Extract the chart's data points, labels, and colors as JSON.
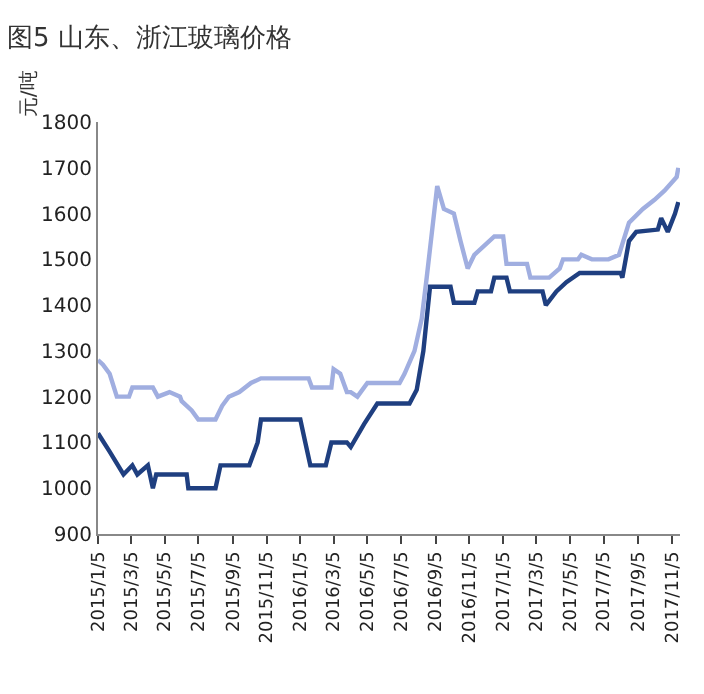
{
  "chart_data": {
    "type": "line",
    "title": "图5 山东、浙江玻璃价格",
    "ylabel": "元/吨",
    "xlim": [
      "2015-01-05",
      "2017-11-20"
    ],
    "ylim": [
      900,
      1800
    ],
    "yticks": [
      900,
      1000,
      1100,
      1200,
      1300,
      1400,
      1500,
      1600,
      1700,
      1800
    ],
    "xticks": [
      {
        "value": "2015-01-05",
        "label": "2015/1/5"
      },
      {
        "value": "2015-03-05",
        "label": "2015/3/5"
      },
      {
        "value": "2015-05-05",
        "label": "2015/5/5"
      },
      {
        "value": "2015-07-05",
        "label": "2015/7/5"
      },
      {
        "value": "2015-09-05",
        "label": "2015/9/5"
      },
      {
        "value": "2015-11-05",
        "label": "2015/11/5"
      },
      {
        "value": "2016-01-05",
        "label": "2016/1/5"
      },
      {
        "value": "2016-03-05",
        "label": "2016/3/5"
      },
      {
        "value": "2016-05-05",
        "label": "2016/5/5"
      },
      {
        "value": "2016-07-05",
        "label": "2016/7/5"
      },
      {
        "value": "2016-09-05",
        "label": "2016/9/5"
      },
      {
        "value": "2016-11-05",
        "label": "2016/11/5"
      },
      {
        "value": "2017-01-05",
        "label": "2017/1/5"
      },
      {
        "value": "2017-03-05",
        "label": "2017/3/5"
      },
      {
        "value": "2017-05-05",
        "label": "2017/5/5"
      },
      {
        "value": "2017-07-05",
        "label": "2017/7/5"
      },
      {
        "value": "2017-09-05",
        "label": "2017/9/5"
      },
      {
        "value": "2017-11-05",
        "label": "2017/11/5"
      }
    ],
    "marker": "none",
    "line_style": "solid",
    "series": [
      {
        "color": "#1f3f80",
        "x": [
          "2015-01-05",
          "2015-01-26",
          "2015-02-20",
          "2015-03-08",
          "2015-03-17",
          "2015-04-05",
          "2015-04-14",
          "2015-04-20",
          "2015-06-14",
          "2015-06-17",
          "2015-08-05",
          "2015-08-14",
          "2015-10-05",
          "2015-10-20",
          "2015-10-26",
          "2016-01-05",
          "2016-01-14",
          "2016-01-23",
          "2016-02-20",
          "2016-03-01",
          "2016-03-29",
          "2016-04-05",
          "2016-04-29",
          "2016-05-23",
          "2016-07-20",
          "2016-08-02",
          "2016-08-14",
          "2016-08-26",
          "2016-10-02",
          "2016-10-08",
          "2016-11-14",
          "2016-11-20",
          "2016-12-14",
          "2016-12-20",
          "2017-01-11",
          "2017-01-17",
          "2017-03-17",
          "2017-03-23",
          "2017-04-11",
          "2017-04-29",
          "2017-05-23",
          "2017-08-05",
          "2017-08-08",
          "2017-08-20",
          "2017-09-02",
          "2017-10-11",
          "2017-10-17",
          "2017-10-29",
          "2017-11-11",
          "2017-11-17"
        ],
        "values": [
          1120,
          1080,
          1030,
          1050,
          1030,
          1050,
          1000,
          1030,
          1030,
          1000,
          1000,
          1050,
          1050,
          1100,
          1150,
          1150,
          1100,
          1050,
          1050,
          1100,
          1100,
          1090,
          1140,
          1185,
          1185,
          1215,
          1300,
          1440,
          1440,
          1405,
          1405,
          1430,
          1430,
          1460,
          1460,
          1430,
          1430,
          1400,
          1430,
          1450,
          1470,
          1470,
          1460,
          1540,
          1560,
          1565,
          1590,
          1560,
          1600,
          1625
        ]
      },
      {
        "color": "#a0aee0",
        "x": [
          "2015-01-05",
          "2015-01-14",
          "2015-01-26",
          "2015-02-08",
          "2015-03-02",
          "2015-03-08",
          "2015-04-14",
          "2015-04-23",
          "2015-05-14",
          "2015-06-02",
          "2015-06-05",
          "2015-06-23",
          "2015-07-05",
          "2015-08-05",
          "2015-08-17",
          "2015-08-29",
          "2015-09-17",
          "2015-10-08",
          "2015-10-26",
          "2016-01-20",
          "2016-01-26",
          "2016-03-01",
          "2016-03-05",
          "2016-03-17",
          "2016-03-29",
          "2016-04-05",
          "2016-04-17",
          "2016-05-05",
          "2016-07-02",
          "2016-07-11",
          "2016-07-29",
          "2016-08-11",
          "2016-08-20",
          "2016-09-08",
          "2016-09-20",
          "2016-10-08",
          "2016-10-20",
          "2016-11-02",
          "2016-11-14",
          "2016-12-02",
          "2016-12-20",
          "2017-01-05",
          "2017-01-11",
          "2017-02-17",
          "2017-02-23",
          "2017-03-29",
          "2017-04-17",
          "2017-04-23",
          "2017-05-20",
          "2017-05-26",
          "2017-06-14",
          "2017-07-14",
          "2017-08-02",
          "2017-08-20",
          "2017-09-14",
          "2017-10-05",
          "2017-10-23",
          "2017-11-14",
          "2017-11-17"
        ],
        "values": [
          1280,
          1270,
          1250,
          1200,
          1200,
          1220,
          1220,
          1200,
          1210,
          1200,
          1190,
          1170,
          1150,
          1150,
          1180,
          1200,
          1210,
          1230,
          1240,
          1240,
          1220,
          1220,
          1260,
          1250,
          1210,
          1210,
          1200,
          1230,
          1230,
          1250,
          1300,
          1370,
          1460,
          1660,
          1610,
          1600,
          1540,
          1480,
          1510,
          1530,
          1550,
          1550,
          1490,
          1490,
          1460,
          1460,
          1480,
          1500,
          1500,
          1510,
          1500,
          1500,
          1510,
          1580,
          1610,
          1630,
          1650,
          1680,
          1700
        ]
      }
    ]
  }
}
